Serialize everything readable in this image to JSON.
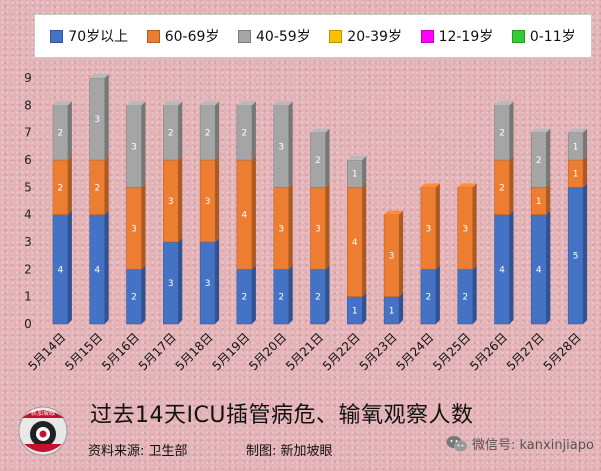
{
  "chart_data": {
    "type": "bar",
    "stacked": true,
    "categories": [
      "5月14日",
      "5月15日",
      "5月16日",
      "5月17日",
      "5月18日",
      "5月19日",
      "5月20日",
      "5月21日",
      "5月22日",
      "5月23日",
      "5月24日",
      "5月25日",
      "5月26日",
      "5月27日",
      "5月28日"
    ],
    "series": [
      {
        "name": "70岁以上",
        "color": "#4472c4",
        "values": [
          4,
          4,
          2,
          3,
          3,
          2,
          2,
          2,
          1,
          1,
          2,
          2,
          4,
          4,
          5
        ]
      },
      {
        "name": "60-69岁",
        "color": "#ed7d31",
        "values": [
          2,
          2,
          3,
          3,
          3,
          4,
          3,
          3,
          4,
          3,
          3,
          3,
          2,
          1,
          1
        ]
      },
      {
        "name": "40-59岁",
        "color": "#a5a5a5",
        "values": [
          2,
          3,
          3,
          2,
          2,
          2,
          3,
          2,
          1,
          0,
          0,
          0,
          2,
          2,
          1
        ]
      },
      {
        "name": "20-39岁",
        "color": "#ffc000",
        "values": [
          0,
          0,
          0,
          0,
          0,
          0,
          0,
          0,
          0,
          0,
          0,
          0,
          0,
          0,
          0
        ]
      },
      {
        "name": "12-19岁",
        "color": "#ff00ff",
        "values": [
          0,
          0,
          0,
          0,
          0,
          0,
          0,
          0,
          0,
          0,
          0,
          0,
          0,
          0,
          0
        ]
      },
      {
        "name": "0-11岁",
        "color": "#33cc33",
        "values": [
          0,
          0,
          0,
          0,
          0,
          0,
          0,
          0,
          0,
          0,
          0,
          0,
          0,
          0,
          0
        ]
      }
    ],
    "ylim": [
      0,
      9
    ],
    "yticks": [
      0,
      1,
      2,
      3,
      4,
      5,
      6,
      7,
      8,
      9
    ],
    "legend_position": "top",
    "grid": false
  },
  "footer": {
    "title": "过去14天ICU插管病危、输氧观察人数",
    "source": "资料来源:  卫生部",
    "credit": "制图:  新加坡眼",
    "wechat": "微信号: kanxinjiapo",
    "logo_text": "新加坡眼"
  }
}
